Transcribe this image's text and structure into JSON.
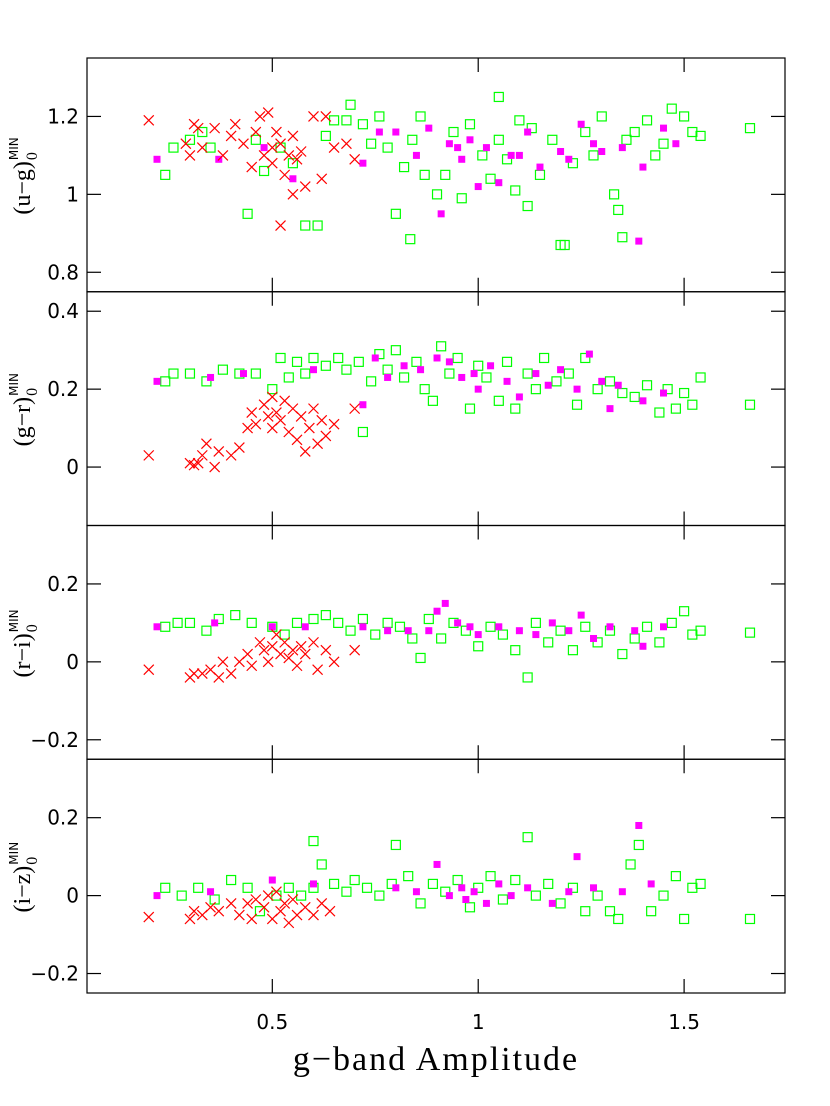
{
  "x_axis": {
    "label": "g−band Amplitude",
    "xlim": [
      0.05,
      1.745
    ],
    "xticks": [
      0.5,
      1,
      1.5
    ]
  },
  "chart_data": [
    {
      "type": "scatter",
      "ylabel": {
        "main": "(u−g)",
        "sub": "0",
        "sup": "MIN"
      },
      "ylim": [
        0.75,
        1.35
      ],
      "yticks": [
        0.8,
        1,
        1.2
      ],
      "series": [
        {
          "color": "#00ff00",
          "marker": "open-square",
          "x": [
            0.24,
            0.26,
            0.3,
            0.33,
            0.35,
            0.44,
            0.46,
            0.48,
            0.52,
            0.55,
            0.58,
            0.61,
            0.63,
            0.65,
            0.68,
            0.69,
            0.72,
            0.74,
            0.76,
            0.78,
            0.8,
            0.82,
            0.835,
            0.84,
            0.86,
            0.87,
            0.9,
            0.92,
            0.94,
            0.96,
            0.98,
            1.01,
            1.03,
            1.05,
            1.05,
            1.07,
            1.09,
            1.1,
            1.12,
            1.13,
            1.15,
            1.18,
            1.2,
            1.21,
            1.23,
            1.26,
            1.28,
            1.3,
            1.33,
            1.34,
            1.35,
            1.36,
            1.38,
            1.41,
            1.43,
            1.45,
            1.47,
            1.5,
            1.52,
            1.54,
            1.66
          ],
          "y": [
            1.05,
            1.12,
            1.14,
            1.16,
            1.12,
            0.95,
            1.14,
            1.06,
            1.12,
            1.08,
            0.92,
            0.92,
            1.15,
            1.19,
            1.19,
            1.23,
            1.18,
            1.13,
            1.2,
            1.12,
            0.95,
            1.07,
            0.885,
            1.14,
            1.2,
            1.05,
            1.0,
            1.05,
            1.16,
            0.99,
            1.18,
            1.1,
            1.04,
            1.14,
            1.25,
            1.09,
            1.01,
            1.19,
            0.97,
            1.17,
            1.05,
            1.14,
            0.87,
            0.87,
            1.08,
            1.16,
            1.1,
            1.2,
            1.0,
            0.96,
            0.89,
            1.14,
            1.16,
            1.19,
            1.1,
            1.13,
            1.22,
            1.2,
            1.16,
            1.15,
            1.17
          ]
        },
        {
          "color": "#ff00ff",
          "marker": "filled-square",
          "x": [
            0.22,
            0.37,
            0.48,
            0.55,
            0.72,
            0.76,
            0.8,
            0.85,
            0.88,
            0.91,
            0.93,
            0.95,
            0.96,
            0.98,
            1.0,
            1.02,
            1.05,
            1.08,
            1.1,
            1.12,
            1.15,
            1.2,
            1.22,
            1.25,
            1.28,
            1.3,
            1.35,
            1.39,
            1.4,
            1.45,
            1.48
          ],
          "y": [
            1.09,
            1.09,
            1.12,
            1.04,
            1.08,
            1.16,
            1.16,
            1.1,
            1.17,
            0.95,
            1.13,
            1.12,
            1.09,
            1.14,
            1.02,
            1.12,
            1.03,
            1.1,
            1.1,
            1.16,
            1.07,
            1.11,
            1.09,
            1.18,
            1.13,
            1.11,
            1.12,
            0.88,
            1.07,
            1.17,
            1.13
          ]
        },
        {
          "color": "#ff0000",
          "marker": "cross",
          "x": [
            0.2,
            0.29,
            0.3,
            0.31,
            0.32,
            0.33,
            0.36,
            0.38,
            0.4,
            0.41,
            0.43,
            0.45,
            0.46,
            0.47,
            0.48,
            0.49,
            0.5,
            0.5,
            0.51,
            0.52,
            0.52,
            0.53,
            0.54,
            0.55,
            0.55,
            0.56,
            0.57,
            0.58,
            0.6,
            0.62,
            0.63,
            0.65,
            0.68,
            0.7
          ],
          "y": [
            1.19,
            1.13,
            1.1,
            1.18,
            1.17,
            1.12,
            1.17,
            1.1,
            1.15,
            1.18,
            1.13,
            1.07,
            1.16,
            1.2,
            1.1,
            1.21,
            1.12,
            1.08,
            1.16,
            1.13,
            0.92,
            1.05,
            1.1,
            1.15,
            1.0,
            1.09,
            1.11,
            1.02,
            1.2,
            1.04,
            1.2,
            1.12,
            1.13,
            1.09
          ]
        }
      ]
    },
    {
      "type": "scatter",
      "ylabel": {
        "main": "(g−r)",
        "sub": "0",
        "sup": "MIN"
      },
      "ylim": [
        -0.15,
        0.45
      ],
      "yticks": [
        0,
        0.2,
        0.4
      ],
      "series": [
        {
          "color": "#00ff00",
          "marker": "open-square",
          "x": [
            0.24,
            0.26,
            0.3,
            0.34,
            0.38,
            0.42,
            0.46,
            0.5,
            0.52,
            0.54,
            0.56,
            0.58,
            0.6,
            0.63,
            0.66,
            0.68,
            0.71,
            0.72,
            0.74,
            0.76,
            0.78,
            0.8,
            0.82,
            0.85,
            0.87,
            0.89,
            0.91,
            0.93,
            0.95,
            0.98,
            1.0,
            1.02,
            1.05,
            1.07,
            1.09,
            1.12,
            1.14,
            1.16,
            1.19,
            1.22,
            1.24,
            1.26,
            1.29,
            1.32,
            1.35,
            1.38,
            1.41,
            1.44,
            1.46,
            1.48,
            1.5,
            1.52,
            1.54,
            1.66
          ],
          "y": [
            0.22,
            0.24,
            0.24,
            0.22,
            0.25,
            0.24,
            0.24,
            0.2,
            0.28,
            0.23,
            0.27,
            0.24,
            0.28,
            0.26,
            0.28,
            0.25,
            0.27,
            0.09,
            0.22,
            0.29,
            0.25,
            0.3,
            0.23,
            0.27,
            0.2,
            0.17,
            0.31,
            0.24,
            0.28,
            0.15,
            0.26,
            0.23,
            0.17,
            0.27,
            0.15,
            0.24,
            0.2,
            0.28,
            0.22,
            0.24,
            0.16,
            0.28,
            0.2,
            0.22,
            0.19,
            0.18,
            0.21,
            0.14,
            0.2,
            0.15,
            0.19,
            0.16,
            0.23,
            0.16
          ]
        },
        {
          "color": "#ff00ff",
          "marker": "filled-square",
          "x": [
            0.22,
            0.35,
            0.43,
            0.6,
            0.72,
            0.75,
            0.78,
            0.82,
            0.86,
            0.9,
            0.93,
            0.96,
            0.99,
            1.0,
            1.03,
            1.07,
            1.1,
            1.14,
            1.17,
            1.2,
            1.24,
            1.27,
            1.3,
            1.32,
            1.34,
            1.4,
            1.45
          ],
          "y": [
            0.22,
            0.23,
            0.24,
            0.25,
            0.16,
            0.28,
            0.23,
            0.26,
            0.25,
            0.28,
            0.27,
            0.23,
            0.24,
            0.2,
            0.26,
            0.22,
            0.18,
            0.24,
            0.21,
            0.25,
            0.2,
            0.29,
            0.22,
            0.15,
            0.21,
            0.17,
            0.19
          ]
        },
        {
          "color": "#ff0000",
          "marker": "cross",
          "x": [
            0.2,
            0.3,
            0.31,
            0.32,
            0.33,
            0.34,
            0.36,
            0.37,
            0.4,
            0.42,
            0.44,
            0.45,
            0.46,
            0.48,
            0.49,
            0.5,
            0.5,
            0.51,
            0.52,
            0.53,
            0.54,
            0.55,
            0.56,
            0.57,
            0.58,
            0.59,
            0.6,
            0.61,
            0.62,
            0.63,
            0.65,
            0.7
          ],
          "y": [
            0.03,
            0.01,
            0.005,
            0.01,
            0.03,
            0.06,
            0.0,
            0.04,
            0.03,
            0.05,
            0.1,
            0.14,
            0.11,
            0.16,
            0.13,
            0.18,
            0.1,
            0.14,
            0.12,
            0.17,
            0.09,
            0.15,
            0.07,
            0.13,
            0.04,
            0.1,
            0.15,
            0.06,
            0.12,
            0.08,
            0.11,
            0.15
          ]
        }
      ]
    },
    {
      "type": "scatter",
      "ylabel": {
        "main": "(r−i)",
        "sub": "0",
        "sup": "MIN"
      },
      "ylim": [
        -0.25,
        0.35
      ],
      "yticks": [
        {
          "value": -0.2,
          "label": "−0.2"
        },
        0,
        0.2
      ],
      "series": [
        {
          "color": "#00ff00",
          "marker": "open-square",
          "x": [
            0.24,
            0.27,
            0.3,
            0.34,
            0.37,
            0.41,
            0.45,
            0.5,
            0.53,
            0.56,
            0.6,
            0.63,
            0.66,
            0.69,
            0.72,
            0.75,
            0.78,
            0.81,
            0.84,
            0.86,
            0.88,
            0.91,
            0.94,
            0.97,
            1.0,
            1.03,
            1.06,
            1.09,
            1.12,
            1.14,
            1.17,
            1.2,
            1.23,
            1.26,
            1.29,
            1.32,
            1.35,
            1.38,
            1.41,
            1.44,
            1.47,
            1.5,
            1.52,
            1.54,
            1.66
          ],
          "y": [
            0.09,
            0.1,
            0.1,
            0.08,
            0.11,
            0.12,
            0.1,
            0.09,
            0.07,
            0.1,
            0.11,
            0.12,
            0.1,
            0.08,
            0.11,
            0.07,
            0.1,
            0.09,
            0.06,
            0.01,
            0.11,
            0.06,
            0.1,
            0.08,
            0.04,
            0.09,
            0.07,
            0.03,
            -0.04,
            0.1,
            0.05,
            0.08,
            0.03,
            0.09,
            0.05,
            0.08,
            0.02,
            0.06,
            0.09,
            0.05,
            0.1,
            0.13,
            0.07,
            0.08,
            0.075
          ]
        },
        {
          "color": "#ff00ff",
          "marker": "filled-square",
          "x": [
            0.22,
            0.36,
            0.5,
            0.58,
            0.72,
            0.78,
            0.83,
            0.88,
            0.9,
            0.92,
            0.95,
            0.98,
            1.0,
            1.05,
            1.1,
            1.14,
            1.18,
            1.22,
            1.25,
            1.28,
            1.32,
            1.38,
            1.4,
            1.45
          ],
          "y": [
            0.09,
            0.1,
            0.09,
            0.09,
            0.09,
            0.08,
            0.08,
            0.08,
            0.13,
            0.15,
            0.1,
            0.09,
            0.07,
            0.09,
            0.08,
            0.07,
            0.1,
            0.08,
            0.12,
            0.06,
            0.09,
            0.08,
            0.04,
            0.09
          ]
        },
        {
          "color": "#ff0000",
          "marker": "cross",
          "x": [
            0.2,
            0.3,
            0.31,
            0.33,
            0.35,
            0.37,
            0.38,
            0.4,
            0.42,
            0.44,
            0.45,
            0.47,
            0.48,
            0.49,
            0.5,
            0.51,
            0.52,
            0.53,
            0.54,
            0.55,
            0.56,
            0.57,
            0.58,
            0.6,
            0.61,
            0.63,
            0.65,
            0.7
          ],
          "y": [
            -0.02,
            -0.04,
            -0.03,
            -0.03,
            -0.02,
            -0.04,
            0.0,
            -0.03,
            0.0,
            0.02,
            -0.01,
            0.05,
            0.03,
            0.0,
            0.04,
            0.07,
            0.02,
            0.05,
            0.01,
            0.03,
            -0.01,
            0.04,
            0.02,
            0.05,
            -0.02,
            0.03,
            0.0,
            0.03
          ]
        }
      ]
    },
    {
      "type": "scatter",
      "ylabel": {
        "main": "(i−z)",
        "sub": "0",
        "sup": "MIN"
      },
      "ylim": [
        -0.25,
        0.35
      ],
      "yticks": [
        {
          "value": -0.2,
          "label": "−0.2"
        },
        0,
        0.2
      ],
      "series": [
        {
          "color": "#00ff00",
          "marker": "open-square",
          "x": [
            0.24,
            0.28,
            0.32,
            0.36,
            0.4,
            0.44,
            0.47,
            0.51,
            0.54,
            0.57,
            0.6,
            0.6,
            0.62,
            0.65,
            0.68,
            0.7,
            0.73,
            0.76,
            0.79,
            0.8,
            0.83,
            0.86,
            0.89,
            0.92,
            0.95,
            0.98,
            1.0,
            1.03,
            1.06,
            1.09,
            1.12,
            1.14,
            1.17,
            1.2,
            1.23,
            1.26,
            1.29,
            1.32,
            1.34,
            1.37,
            1.39,
            1.42,
            1.45,
            1.48,
            1.5,
            1.52,
            1.54,
            1.66
          ],
          "y": [
            0.02,
            0.0,
            0.02,
            -0.01,
            0.04,
            0.02,
            -0.04,
            0.0,
            0.02,
            0.0,
            0.02,
            0.14,
            0.08,
            0.03,
            0.01,
            0.04,
            0.02,
            0.0,
            0.03,
            0.13,
            0.05,
            -0.02,
            0.03,
            0.01,
            0.04,
            -0.03,
            0.02,
            0.05,
            -0.01,
            0.04,
            0.15,
            0.0,
            0.03,
            -0.02,
            0.02,
            -0.04,
            0.0,
            -0.04,
            -0.06,
            0.08,
            0.13,
            -0.04,
            0.0,
            0.05,
            -0.06,
            0.02,
            0.03,
            -0.06
          ]
        },
        {
          "color": "#ff00ff",
          "marker": "filled-square",
          "x": [
            0.22,
            0.35,
            0.5,
            0.6,
            0.8,
            0.85,
            0.9,
            0.93,
            0.96,
            0.97,
            0.99,
            1.02,
            1.05,
            1.08,
            1.12,
            1.18,
            1.22,
            1.24,
            1.28,
            1.35,
            1.39,
            1.42
          ],
          "y": [
            0.0,
            0.01,
            0.04,
            0.03,
            0.02,
            0.01,
            0.08,
            0.0,
            0.02,
            -0.01,
            0.01,
            -0.02,
            0.03,
            0.0,
            0.02,
            -0.02,
            0.01,
            0.1,
            0.02,
            0.01,
            0.18,
            0.03
          ]
        },
        {
          "color": "#ff0000",
          "marker": "cross",
          "x": [
            0.2,
            0.3,
            0.31,
            0.33,
            0.35,
            0.37,
            0.4,
            0.42,
            0.44,
            0.45,
            0.46,
            0.48,
            0.49,
            0.5,
            0.51,
            0.52,
            0.53,
            0.54,
            0.55,
            0.56,
            0.58,
            0.6,
            0.62,
            0.64
          ],
          "y": [
            -0.055,
            -0.06,
            -0.04,
            -0.05,
            -0.03,
            -0.04,
            -0.02,
            -0.05,
            -0.02,
            -0.06,
            -0.01,
            -0.03,
            0.0,
            -0.06,
            0.01,
            -0.04,
            -0.02,
            -0.07,
            -0.01,
            -0.05,
            -0.03,
            -0.05,
            -0.02,
            -0.04
          ]
        }
      ]
    }
  ]
}
